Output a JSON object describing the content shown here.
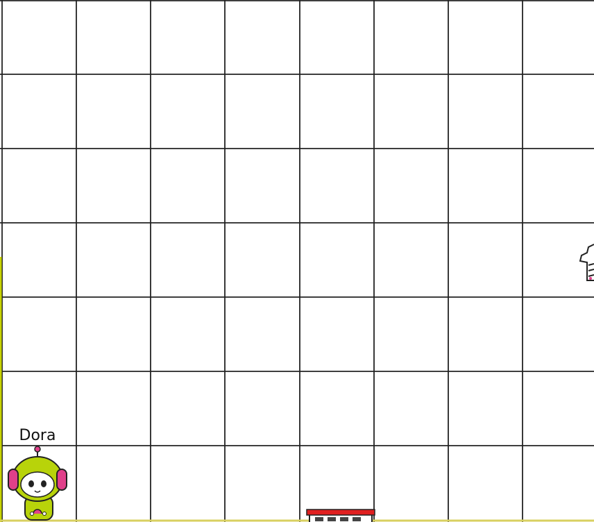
{
  "character": {
    "label": "Dora"
  }
}
